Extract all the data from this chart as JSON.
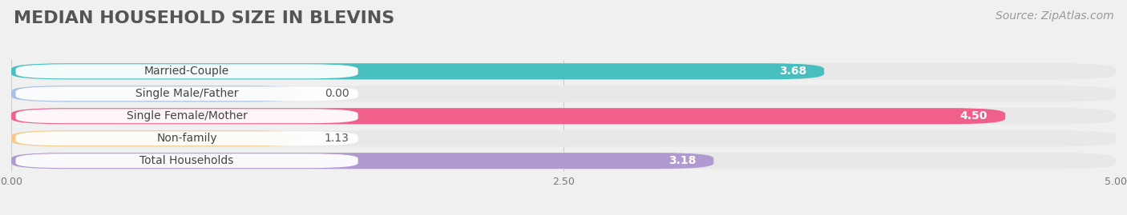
{
  "title": "MEDIAN HOUSEHOLD SIZE IN BLEVINS",
  "source": "Source: ZipAtlas.com",
  "categories": [
    "Married-Couple",
    "Single Male/Father",
    "Single Female/Mother",
    "Non-family",
    "Total Households"
  ],
  "values": [
    3.68,
    0.0,
    4.5,
    1.13,
    3.18
  ],
  "bar_colors": [
    "#47bfc0",
    "#a8bfe8",
    "#f0608a",
    "#f5c98a",
    "#b09ad0"
  ],
  "background_color": "#f0f0f0",
  "bar_bg_color": "#e8e8e8",
  "label_bg_color": "#ffffff",
  "xlim_data": [
    0,
    5.0
  ],
  "xticks": [
    0.0,
    2.5,
    5.0
  ],
  "label_fontsize": 10,
  "value_fontsize": 10,
  "title_fontsize": 16,
  "source_fontsize": 10
}
